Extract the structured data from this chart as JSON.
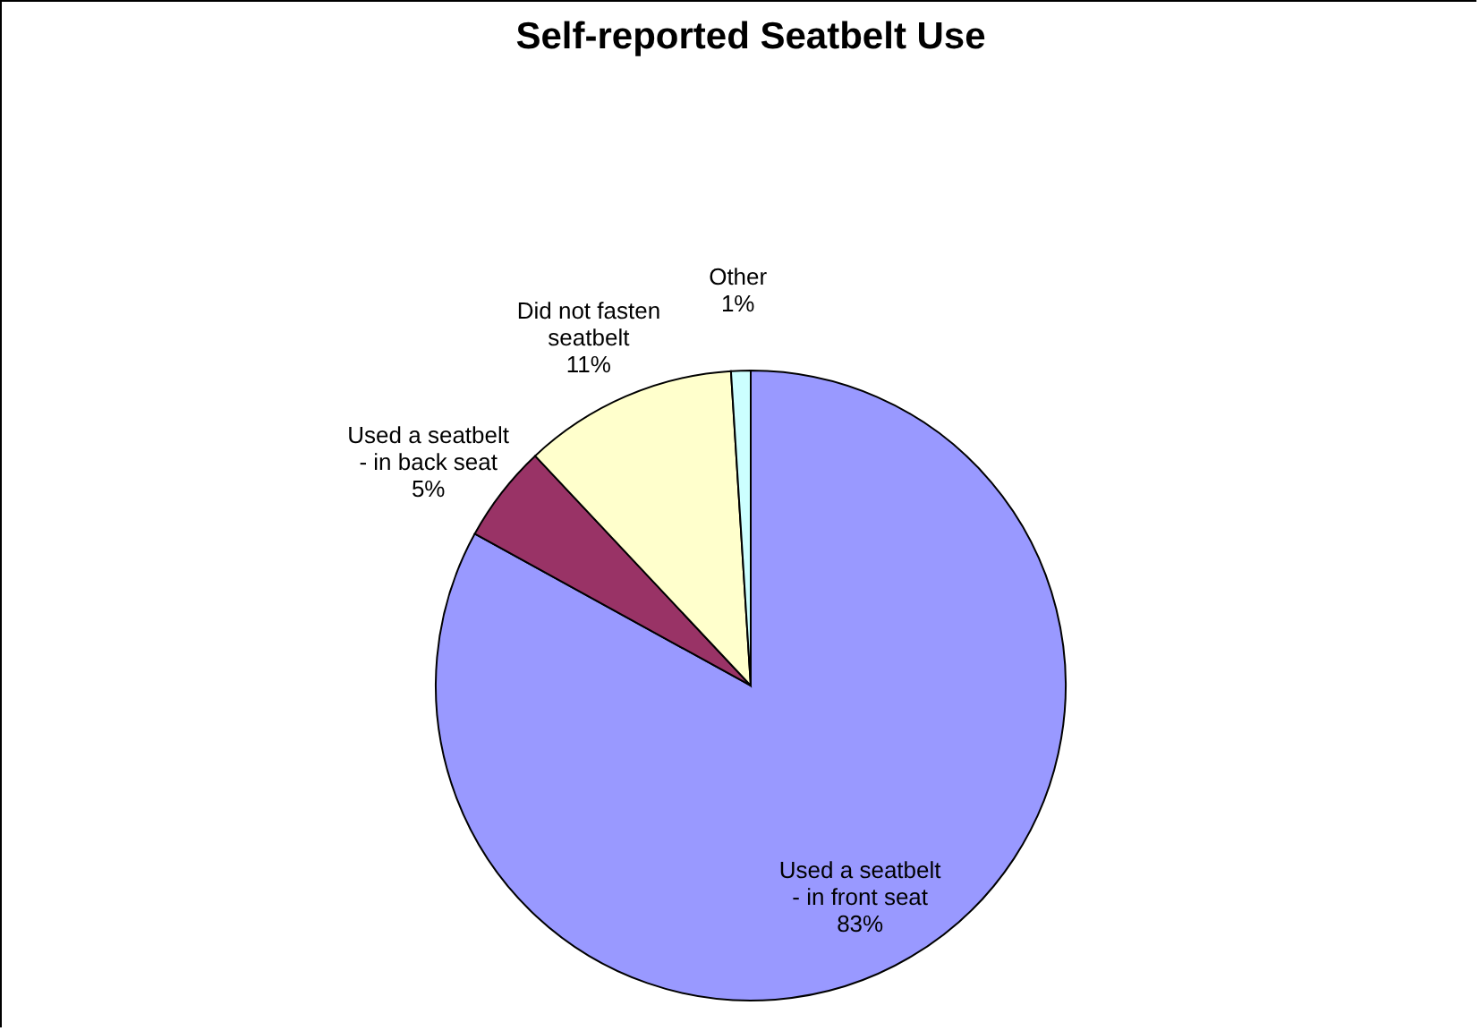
{
  "chart_data": {
    "type": "pie",
    "title": "Self-reported Seatbelt Use",
    "categories": [
      "Used a seatbelt\n- in front seat",
      "Used a seatbelt\n- in back seat",
      "Did not fasten\nseatbelt",
      "Other"
    ],
    "values": [
      83,
      5,
      11,
      1
    ],
    "value_labels": [
      "83%",
      "5%",
      "11%",
      "1%"
    ],
    "colors": [
      "#9999ff",
      "#993366",
      "#ffffcc",
      "#ccffff"
    ],
    "legend": false
  }
}
